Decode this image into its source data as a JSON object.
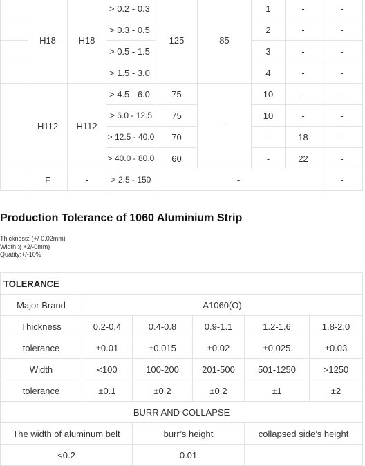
{
  "spec_table": {
    "rows": [
      {
        "temper": "H18",
        "temper2": "H18",
        "thickness": "> 0.2 - 0.3",
        "tensile": "125",
        "yield": "85",
        "c1": "1",
        "c2": "-",
        "c3": "-"
      },
      {
        "thickness": "> 0.3 - 0.5",
        "c1": "2",
        "c2": "-",
        "c3": "-"
      },
      {
        "thickness": "> 0.5 - 1.5",
        "c1": "3",
        "c2": "-",
        "c3": "-"
      },
      {
        "thickness": "> 1.5 - 3.0",
        "c1": "4",
        "c2": "-",
        "c3": "-"
      },
      {
        "temper": "H112",
        "temper2": "H112",
        "thickness": "> 4.5 - 6.0",
        "tensile": "75",
        "yield": "-",
        "c1": "10",
        "c2": "-",
        "c3": "-"
      },
      {
        "thickness": "> 6.0 - 12.5",
        "tensile": "75",
        "c1": "10",
        "c2": "-",
        "c3": "-"
      },
      {
        "thickness": "> 12.5 - 40.0",
        "tensile": "70",
        "c1": "-",
        "c2": "18",
        "c3": "-"
      },
      {
        "thickness": "> 40.0 - 80.0",
        "tensile": "60",
        "c1": "-",
        "c2": "22",
        "c3": "-"
      },
      {
        "temper": "F",
        "temper2": "-",
        "thickness": "> 2.5 - 150",
        "merged": "-",
        "c3": "-"
      }
    ]
  },
  "section_title": "Production Tolerance of 1060 Aluminium Strip",
  "notes": [
    "Thickness: (+/-0.02mm)",
    "Width :( +2/-0mm)",
    "Quatity:+/-10%"
  ],
  "tolerance_table": {
    "header": "TOLERANCE",
    "brand_label": "Major Brand",
    "brand_value": "A1060(O)",
    "thickness_label": "Thickness",
    "thickness_values": [
      "0.2-0.4",
      "0.4-0.8",
      "0.9-1.1",
      "1.2-1.6",
      "1.8-2.0"
    ],
    "tolerance_label": "tolerance",
    "thickness_tol": [
      "±0.01",
      "±0.015",
      "±0.02",
      "±0.025",
      "±0.03"
    ],
    "width_label": "Width",
    "width_values": [
      "<100",
      "100-200",
      "201-500",
      "501-1250",
      ">1250"
    ],
    "width_tol": [
      "±0.1",
      "±0.2",
      "±0.2",
      "±1",
      "±2"
    ],
    "burr_header": "BURR AND COLLAPSE",
    "burr_cols": [
      "The width of aluminum belt",
      "burr’s height",
      "collapsed side’s height"
    ],
    "burr_row": [
      "<0.2",
      "0.01"
    ]
  }
}
